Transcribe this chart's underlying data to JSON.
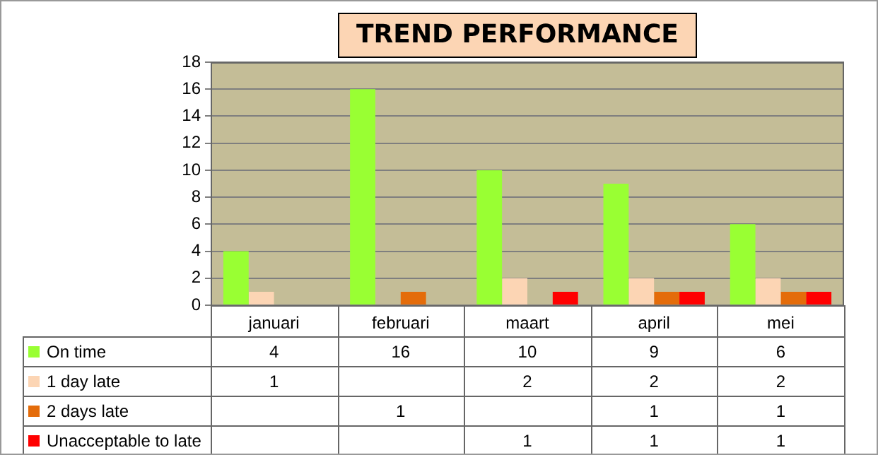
{
  "chart_data": {
    "type": "bar",
    "title": "TREND PERFORMANCE",
    "categories": [
      "januari",
      "februari",
      "maart",
      "april",
      "mei"
    ],
    "series": [
      {
        "name": "On time",
        "color": "#99ff33",
        "values": [
          4,
          16,
          10,
          9,
          6
        ]
      },
      {
        "name": "1 day late",
        "color": "#fcd5b4",
        "values": [
          1,
          null,
          2,
          2,
          2
        ]
      },
      {
        "name": "2 days late",
        "color": "#e46c0a",
        "values": [
          null,
          1,
          null,
          1,
          1
        ]
      },
      {
        "name": "Unacceptable to late",
        "color": "#ff0000",
        "values": [
          null,
          null,
          1,
          1,
          1
        ]
      }
    ],
    "ylim": [
      0,
      18
    ],
    "yticks": [
      0,
      2,
      4,
      6,
      8,
      10,
      12,
      14,
      16,
      18
    ],
    "grid": "y",
    "legend": "bottom left",
    "data_labels": true
  }
}
